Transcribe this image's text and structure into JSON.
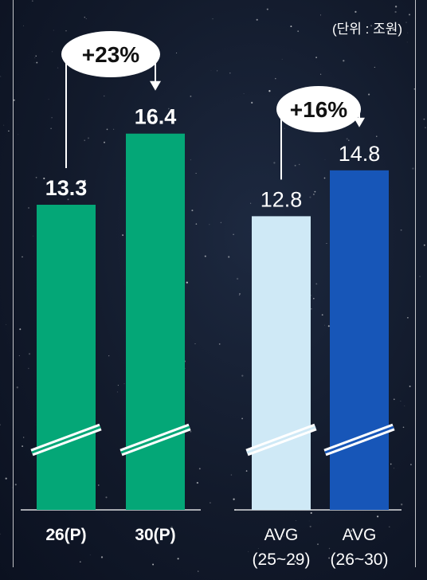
{
  "unit_label": "(단위 : 조원)",
  "chart_data": [
    {
      "type": "bar",
      "categories": [
        "26(P)",
        "30(P)"
      ],
      "values": [
        13.3,
        16.4
      ],
      "value_labels": [
        "13.3",
        "16.4"
      ],
      "colors": [
        "#04a777",
        "#04a777"
      ],
      "axis_break": true,
      "growth_annotation": {
        "label": "+23%",
        "from": "26(P)",
        "to": "30(P)"
      },
      "label_weight": "bold"
    },
    {
      "type": "bar",
      "categories": [
        "AVG (25~29)",
        "AVG (26~30)"
      ],
      "category_lines": [
        [
          "AVG",
          "(25~29)"
        ],
        [
          "AVG",
          "(26~30)"
        ]
      ],
      "values": [
        12.8,
        14.8
      ],
      "value_labels": [
        "12.8",
        "14.8"
      ],
      "colors": [
        "#cfe9f6",
        "#1756b8"
      ],
      "axis_break": true,
      "growth_annotation": {
        "label": "+16%",
        "from": "AVG (25~29)",
        "to": "AVG (26~30)"
      },
      "label_weight": "normal"
    }
  ]
}
